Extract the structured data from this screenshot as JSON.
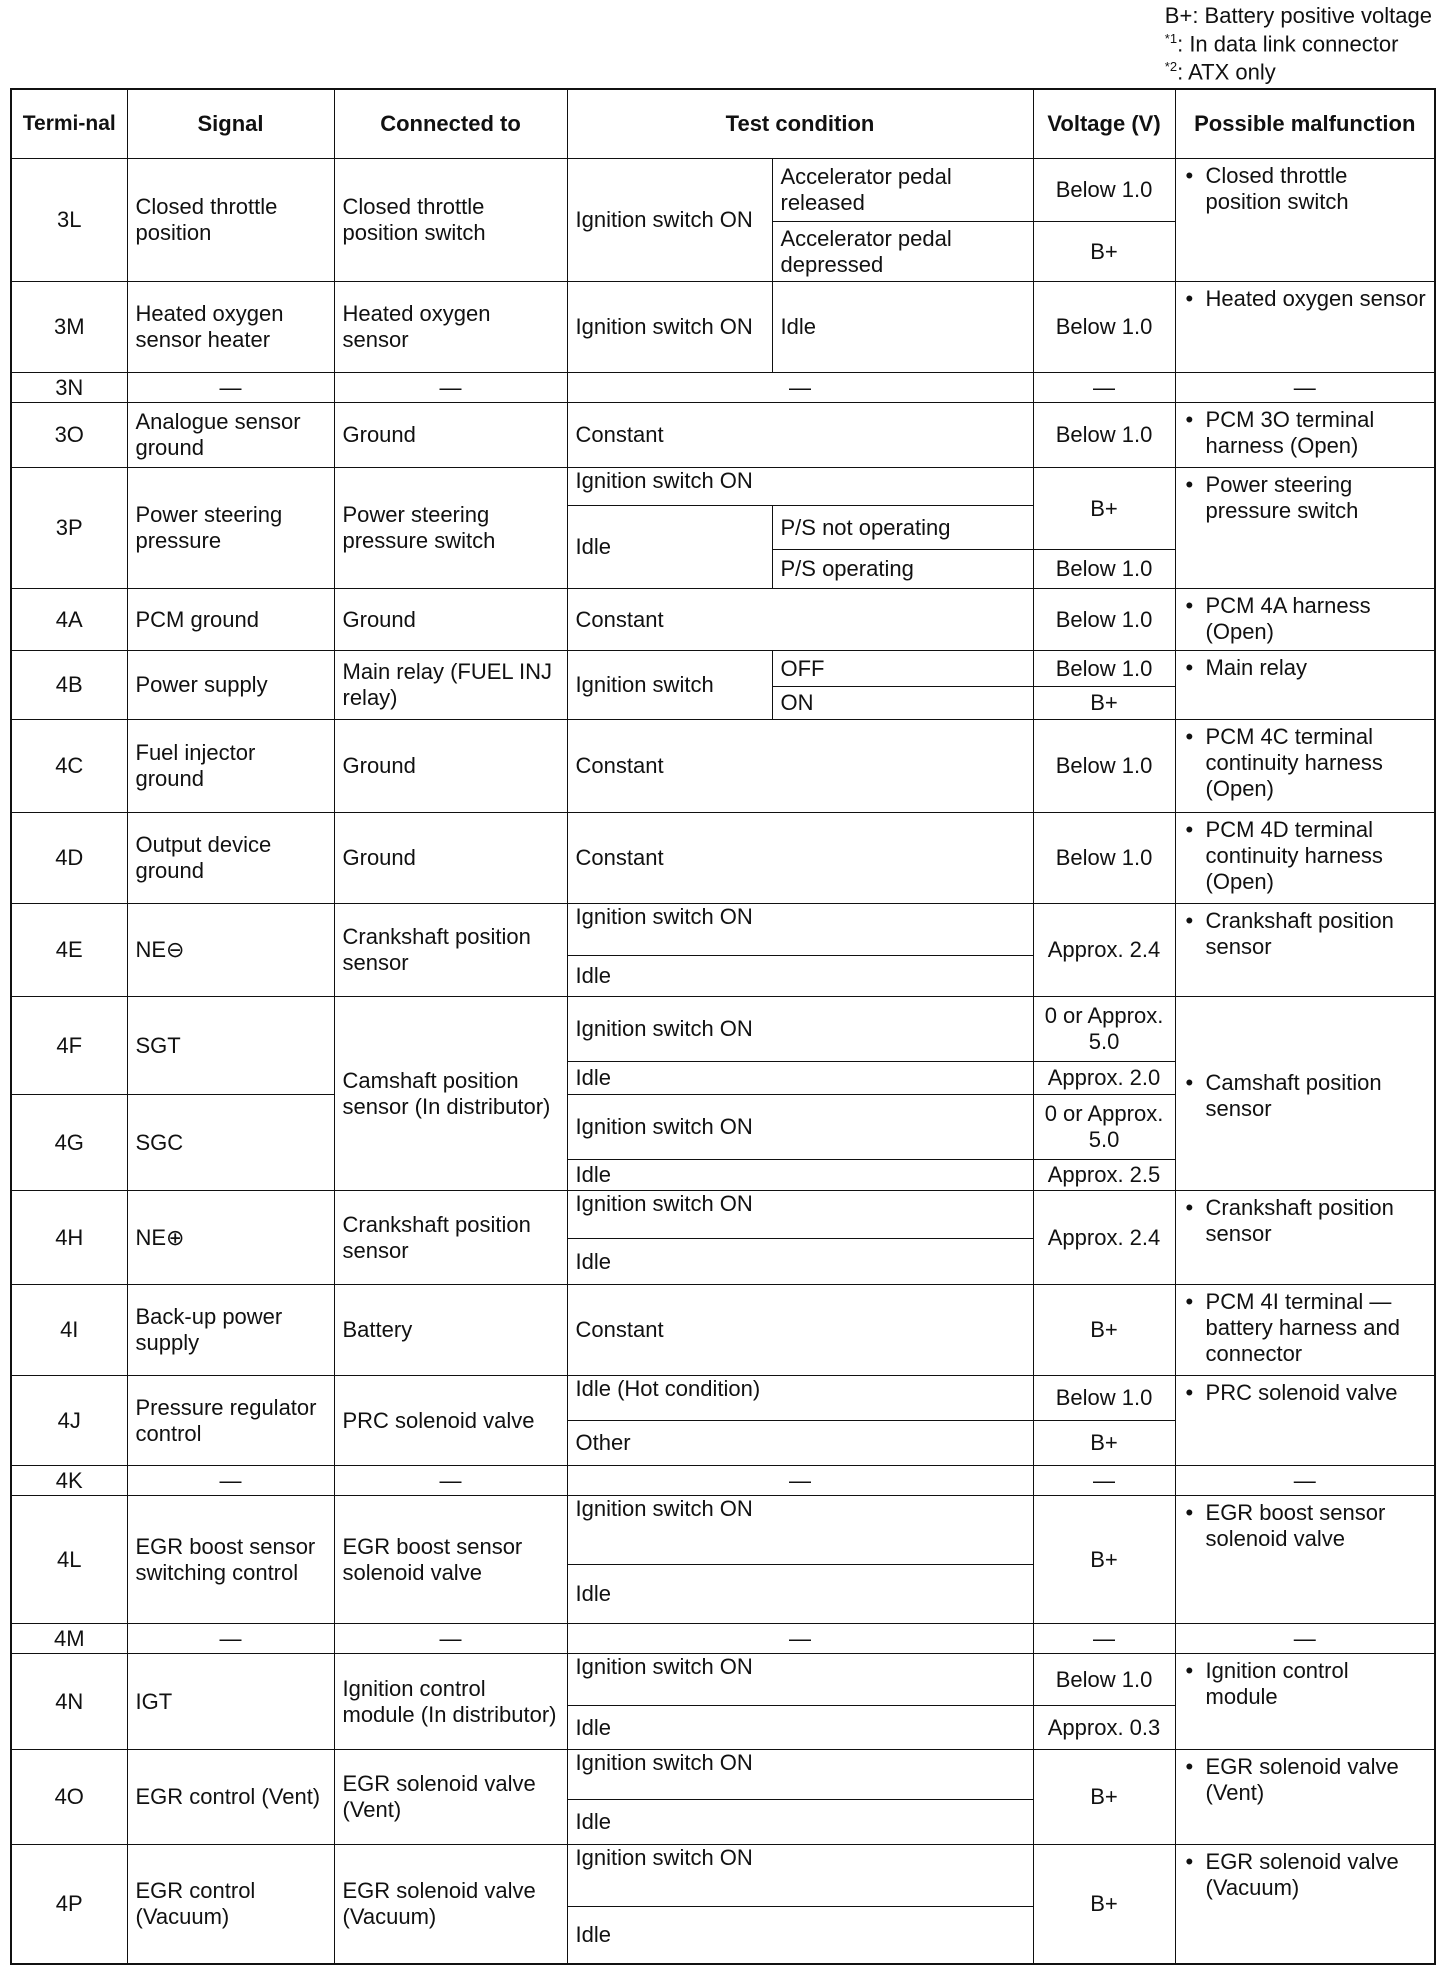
{
  "legend": {
    "bplus": "B+: Battery positive voltage",
    "note1_mark": "*1",
    "note1": ": In data link connector",
    "note2_mark": "*2",
    "note2": ": ATX only"
  },
  "headers": {
    "terminal": "Termi-nal",
    "signal": "Signal",
    "connected_to": "Connected to",
    "test_condition": "Test condition",
    "voltage": "Voltage (V)",
    "malfunction": "Possible malfunction"
  },
  "dash": "—",
  "rows": [
    {
      "terminal": "3L",
      "signal": "Closed throttle position",
      "connected_to": "Closed throttle position switch",
      "condition": "Ignition switch ON",
      "sub": [
        "Accelerator pedal released",
        "Accelerator pedal depressed"
      ],
      "voltage": [
        "Below 1.0",
        "B+"
      ],
      "malfunction": "Closed throttle position switch"
    },
    {
      "terminal": "3M",
      "signal": "Heated oxygen sensor heater",
      "connected_to": "Heated oxygen sensor",
      "condition": "Ignition switch ON",
      "sub": [
        "Idle"
      ],
      "voltage": [
        "Below 1.0"
      ],
      "malfunction": "Heated oxygen sensor"
    },
    {
      "terminal": "3N"
    },
    {
      "terminal": "3O",
      "signal": "Analogue sensor ground",
      "connected_to": "Ground",
      "condition": "Constant",
      "voltage": [
        "Below 1.0"
      ],
      "malfunction": "PCM 3O terminal harness (Open)"
    },
    {
      "terminal": "3P",
      "signal": "Power steering pressure",
      "connected_to": "Power steering pressure switch",
      "condition": "Ignition switch ON",
      "condition2": "Idle",
      "sub": [
        "P/S not operating",
        "P/S operating"
      ],
      "voltage": [
        "B+",
        "Below 1.0"
      ],
      "malfunction": "Power steering pressure switch"
    },
    {
      "terminal": "4A",
      "signal": "PCM ground",
      "connected_to": "Ground",
      "condition": "Constant",
      "voltage": [
        "Below 1.0"
      ],
      "malfunction": "PCM 4A harness (Open)"
    },
    {
      "terminal": "4B",
      "signal": "Power supply",
      "connected_to": "Main relay (FUEL INJ relay)",
      "condition": "Ignition switch",
      "sub": [
        "OFF",
        "ON"
      ],
      "voltage": [
        "Below 1.0",
        "B+"
      ],
      "malfunction": "Main relay"
    },
    {
      "terminal": "4C",
      "signal": "Fuel injector ground",
      "connected_to": "Ground",
      "condition": "Constant",
      "voltage": [
        "Below 1.0"
      ],
      "malfunction": "PCM 4C terminal continuity harness (Open)"
    },
    {
      "terminal": "4D",
      "signal": "Output device ground",
      "connected_to": "Ground",
      "condition": "Constant",
      "voltage": [
        "Below 1.0"
      ],
      "malfunction": "PCM 4D terminal continuity harness (Open)"
    },
    {
      "terminal": "4E",
      "signal": "NE⊖",
      "connected_to": "Crankshaft position sensor",
      "conditions": [
        "Ignition switch ON",
        "Idle"
      ],
      "voltage": [
        "Approx. 2.4"
      ],
      "malfunction": "Crankshaft position sensor"
    },
    {
      "terminal": "4F",
      "signal": "SGT",
      "connected_to": "Camshaft position sensor (In distributor)",
      "conditions": [
        "Ignition switch ON",
        "Idle"
      ],
      "voltage": [
        "0 or Approx. 5.0",
        "Approx. 2.0"
      ],
      "malfunction": "Camshaft position sensor"
    },
    {
      "terminal": "4G",
      "signal": "SGC",
      "conditions": [
        "Ignition switch ON",
        "Idle"
      ],
      "voltage": [
        "0 or Approx. 5.0",
        "Approx. 2.5"
      ]
    },
    {
      "terminal": "4H",
      "signal": "NE⊕",
      "connected_to": "Crankshaft position sensor",
      "conditions": [
        "Ignition switch ON",
        "Idle"
      ],
      "voltage": [
        "Approx. 2.4"
      ],
      "malfunction": "Crankshaft position sensor"
    },
    {
      "terminal": "4I",
      "signal": "Back-up power supply",
      "connected_to": "Battery",
      "condition": "Constant",
      "voltage": [
        "B+"
      ],
      "malfunction": "PCM 4I terminal — battery harness and connector"
    },
    {
      "terminal": "4J",
      "signal": "Pressure regulator control",
      "connected_to": "PRC solenoid valve",
      "conditions": [
        "Idle (Hot condition)",
        "Other"
      ],
      "voltage": [
        "Below 1.0",
        "B+"
      ],
      "malfunction": "PRC solenoid valve"
    },
    {
      "terminal": "4K"
    },
    {
      "terminal": "4L",
      "signal": "EGR boost sensor switching control",
      "connected_to": "EGR boost sensor solenoid valve",
      "conditions": [
        "Ignition switch ON",
        "Idle"
      ],
      "voltage": [
        "B+"
      ],
      "malfunction": "EGR boost sensor solenoid valve"
    },
    {
      "terminal": "4M"
    },
    {
      "terminal": "4N",
      "signal": "IGT",
      "connected_to": "Ignition control module (In distributor)",
      "conditions": [
        "Ignition switch ON",
        "Idle"
      ],
      "voltage": [
        "Below 1.0",
        "Approx. 0.3"
      ],
      "malfunction": "Ignition control module"
    },
    {
      "terminal": "4O",
      "signal": "EGR control (Vent)",
      "connected_to": "EGR solenoid valve (Vent)",
      "conditions": [
        "Ignition switch ON",
        "Idle"
      ],
      "voltage": [
        "B+"
      ],
      "malfunction": "EGR solenoid valve (Vent)"
    },
    {
      "terminal": "4P",
      "signal": "EGR control (Vacuum)",
      "connected_to": "EGR solenoid valve (Vacuum)",
      "conditions": [
        "Ignition switch ON",
        "Idle"
      ],
      "voltage": [
        "B+"
      ],
      "malfunction": "EGR solenoid valve (Vacuum)"
    }
  ]
}
